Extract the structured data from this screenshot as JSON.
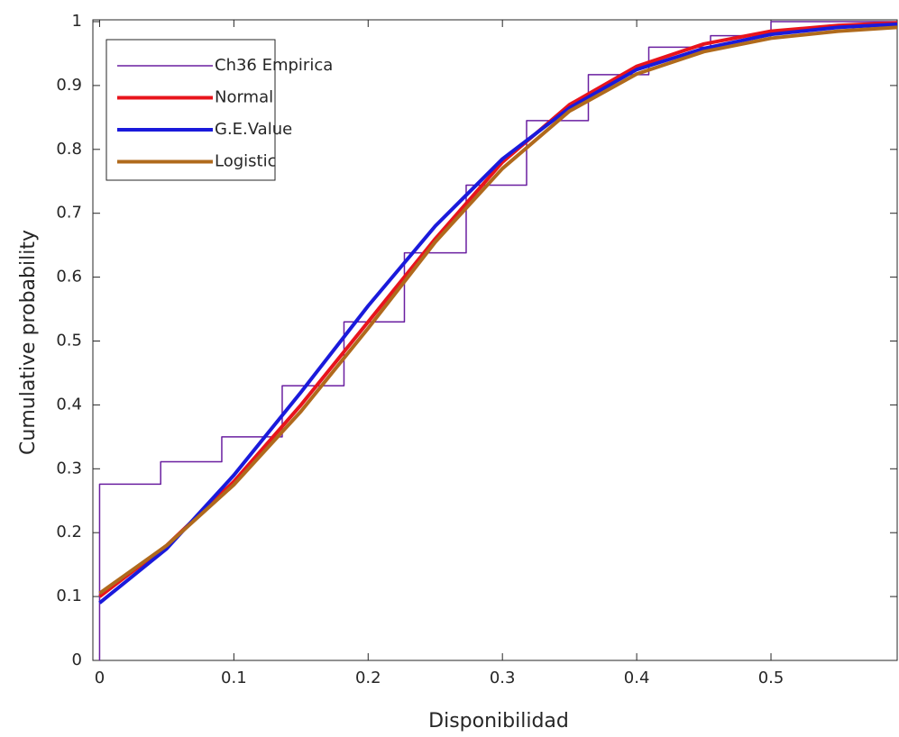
{
  "chart_data": {
    "type": "line",
    "xlabel": "Disponibilidad",
    "ylabel": "Cumulative probability",
    "xlim": [
      -0.005,
      0.594
    ],
    "ylim": [
      0,
      1
    ],
    "xticks": [
      0,
      0.1,
      0.2,
      0.3,
      0.4,
      0.5
    ],
    "yticks": [
      0,
      0.1,
      0.2,
      0.3,
      0.4,
      0.5,
      0.6,
      0.7,
      0.8,
      0.9,
      1
    ],
    "legend": "upper left",
    "grid": false,
    "series": [
      {
        "name": "Ch36 Empirica",
        "color": "#6a1fa0",
        "width": 1.5,
        "x": [
          0,
          0,
          0.0455,
          0.0455,
          0.091,
          0.091,
          0.136,
          0.136,
          0.182,
          0.182,
          0.227,
          0.227,
          0.273,
          0.273,
          0.318,
          0.318,
          0.364,
          0.364,
          0.409,
          0.409,
          0.455,
          0.455,
          0.5,
          0.5,
          0.594
        ],
        "values": [
          0,
          0.276,
          0.276,
          0.311,
          0.311,
          0.35,
          0.35,
          0.43,
          0.43,
          0.53,
          0.53,
          0.638,
          0.638,
          0.744,
          0.744,
          0.845,
          0.845,
          0.917,
          0.917,
          0.96,
          0.96,
          0.978,
          0.978,
          1,
          1
        ]
      },
      {
        "name": "Normal",
        "color": "#e8141c",
        "width": 4,
        "x": [
          0,
          0.05,
          0.1,
          0.15,
          0.2,
          0.25,
          0.3,
          0.35,
          0.4,
          0.45,
          0.5,
          0.55,
          0.594
        ],
        "values": [
          0.1,
          0.18,
          0.28,
          0.4,
          0.53,
          0.66,
          0.78,
          0.87,
          0.93,
          0.965,
          0.985,
          0.994,
          0.998
        ]
      },
      {
        "name": "G.E.Value",
        "color": "#1a1adb",
        "width": 4,
        "x": [
          0,
          0.05,
          0.1,
          0.15,
          0.2,
          0.25,
          0.3,
          0.35,
          0.4,
          0.45,
          0.5,
          0.55,
          0.594
        ],
        "values": [
          0.09,
          0.175,
          0.29,
          0.42,
          0.555,
          0.68,
          0.785,
          0.865,
          0.925,
          0.958,
          0.98,
          0.991,
          0.996
        ]
      },
      {
        "name": "Logistic",
        "color": "#b06a1c",
        "width": 4,
        "x": [
          0,
          0.05,
          0.1,
          0.15,
          0.2,
          0.25,
          0.3,
          0.35,
          0.4,
          0.45,
          0.5,
          0.55,
          0.594
        ],
        "values": [
          0.105,
          0.18,
          0.275,
          0.39,
          0.52,
          0.655,
          0.77,
          0.86,
          0.918,
          0.953,
          0.974,
          0.985,
          0.991
        ]
      }
    ]
  }
}
